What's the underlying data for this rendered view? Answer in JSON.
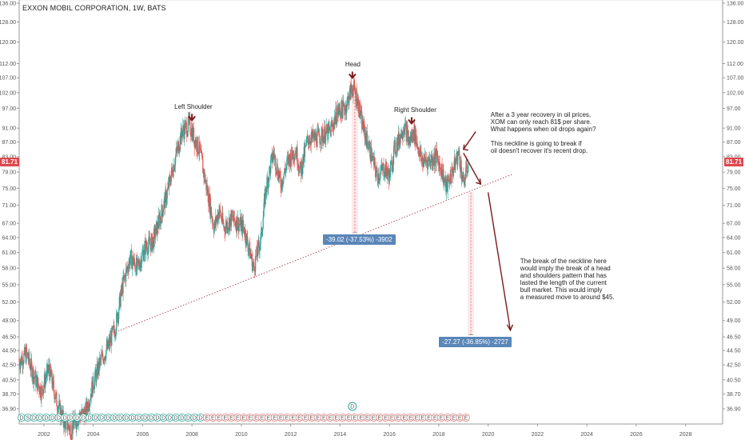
{
  "header": {
    "symbol_title": "EXXON MOBIL CORPORATION, 1W, BATS"
  },
  "price_badge": "81.71",
  "chart_data": {
    "type": "candlestick",
    "title": "EXXON MOBIL CORPORATION, 1W, BATS",
    "x_ticks": [
      "2002",
      "2004",
      "2006",
      "2008",
      "2010",
      "2012",
      "2014",
      "2016",
      "2018",
      "2020",
      "2022",
      "2024",
      "2026",
      "2028"
    ],
    "y_ticks": [
      "36.90",
      "38.70",
      "40.50",
      "42.50",
      "44.50",
      "46.50",
      "49.00",
      "52.00",
      "55.00",
      "58.00",
      "61.00",
      "64.00",
      "67.00",
      "71.00",
      "75.00",
      "79.00",
      "83.00",
      "87.00",
      "91.00",
      "97.00",
      "102.00",
      "107.00",
      "112.00",
      "120.00",
      "128.00",
      "136.00"
    ],
    "y_scale": "log",
    "ylim": [
      35.5,
      136
    ],
    "xlim": [
      2001.0,
      2029.5
    ],
    "last_price": 81.71,
    "price_path": [
      [
        2001.0,
        43
      ],
      [
        2001.3,
        44
      ],
      [
        2001.6,
        41
      ],
      [
        2001.9,
        39
      ],
      [
        2002.2,
        42
      ],
      [
        2002.5,
        38
      ],
      [
        2002.8,
        35.5
      ],
      [
        2003.1,
        34.5
      ],
      [
        2003.4,
        36
      ],
      [
        2003.7,
        36.5
      ],
      [
        2004.0,
        40
      ],
      [
        2004.3,
        43
      ],
      [
        2004.6,
        45
      ],
      [
        2004.9,
        48
      ],
      [
        2005.2,
        55
      ],
      [
        2005.5,
        60
      ],
      [
        2005.8,
        58
      ],
      [
        2006.1,
        62
      ],
      [
        2006.4,
        63
      ],
      [
        2006.7,
        68
      ],
      [
        2007.0,
        74
      ],
      [
        2007.3,
        82
      ],
      [
        2007.6,
        90
      ],
      [
        2007.9,
        92
      ],
      [
        2008.1,
        88
      ],
      [
        2008.3,
        85
      ],
      [
        2008.5,
        78
      ],
      [
        2008.7,
        72
      ],
      [
        2008.9,
        66
      ],
      [
        2009.1,
        70
      ],
      [
        2009.3,
        66
      ],
      [
        2009.6,
        68
      ],
      [
        2009.9,
        67
      ],
      [
        2010.1,
        66
      ],
      [
        2010.3,
        62
      ],
      [
        2010.5,
        58
      ],
      [
        2010.8,
        64
      ],
      [
        2011.0,
        75
      ],
      [
        2011.3,
        84
      ],
      [
        2011.6,
        76
      ],
      [
        2011.9,
        82
      ],
      [
        2012.2,
        85
      ],
      [
        2012.4,
        79
      ],
      [
        2012.7,
        88
      ],
      [
        2013.0,
        88
      ],
      [
        2013.3,
        89
      ],
      [
        2013.6,
        90
      ],
      [
        2013.9,
        96
      ],
      [
        2014.2,
        97
      ],
      [
        2014.5,
        104
      ],
      [
        2014.7,
        100
      ],
      [
        2014.9,
        92
      ],
      [
        2015.2,
        85
      ],
      [
        2015.5,
        78
      ],
      [
        2015.8,
        80
      ],
      [
        2016.0,
        78
      ],
      [
        2016.2,
        85
      ],
      [
        2016.4,
        88
      ],
      [
        2016.6,
        92
      ],
      [
        2016.8,
        87
      ],
      [
        2017.0,
        90
      ],
      [
        2017.3,
        82
      ],
      [
        2017.6,
        82
      ],
      [
        2017.9,
        83
      ],
      [
        2018.1,
        80
      ],
      [
        2018.3,
        75
      ],
      [
        2018.6,
        80
      ],
      [
        2018.8,
        84
      ],
      [
        2019.0,
        76
      ],
      [
        2019.2,
        81.71
      ]
    ],
    "trendline": {
      "from": [
        2004.9,
        47.2
      ],
      "to": [
        2021.0,
        78.5
      ],
      "label": "neckline"
    },
    "measures": [
      {
        "x": 2014.6,
        "from": 104,
        "to": 65,
        "label": "-39.02 (-37.53%) -3902"
      },
      {
        "x": 2019.3,
        "from": 74,
        "to": 46.8,
        "label": "-27.27 (-36.85%) -2727"
      }
    ],
    "patterns": [
      {
        "label": "Left Shoulder",
        "x": 2008.0,
        "y": 96
      },
      {
        "label": "Head",
        "x": 2014.5,
        "y": 110
      },
      {
        "label": "Right Shoulder",
        "x": 2016.9,
        "y": 95
      }
    ],
    "annotations": [
      "After a 3 year recovery in oil prices,\nXOM can only reach 81$ per share.\nWhat happens when oil drops again?\n\nThis neckline is going to break if\noil doesn't recover it's recent drop.",
      "The break of the neckline here\nwould imply the break of a head\nand shoulders pattern that has\nlasted the length of the current\nbull market. This would imply\na measured move to around $45."
    ],
    "events": {
      "dividend_marker": "D",
      "earnings_marker": "E",
      "split_marker": "S"
    },
    "colors": {
      "up": "#26a69a",
      "down": "#ef5350",
      "trend": "#b05060",
      "arrow": "#7a1a1a",
      "badge": "#e0464e",
      "measure": "#5a86b8"
    }
  }
}
